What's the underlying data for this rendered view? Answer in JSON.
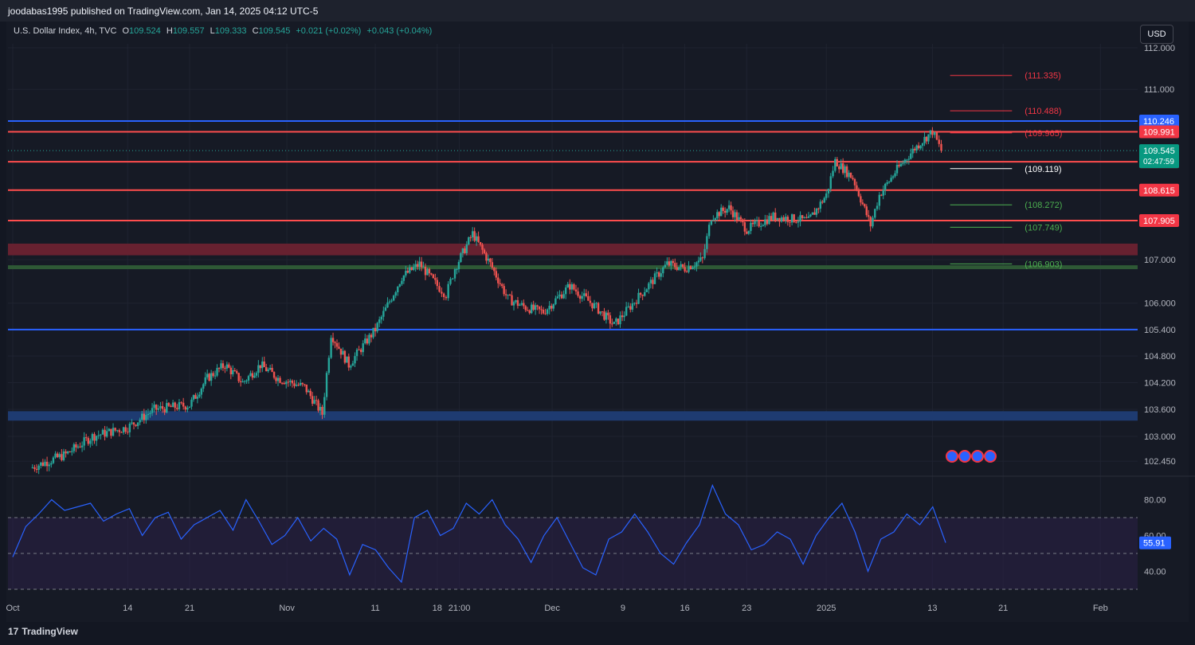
{
  "header": {
    "published_by": "joodabas1995 published on TradingView.com, Jan 14, 2025 04:12 UTC-5"
  },
  "legend": {
    "symbol": "U.S. Dollar Index, 4h, TVC",
    "open_label": "O",
    "open": "109.524",
    "high_label": "H",
    "high": "109.557",
    "low_label": "L",
    "low": "109.333",
    "close_label": "C",
    "close": "109.545",
    "change": "+0.021 (+0.02%)",
    "change2": "+0.043 (+0.04%)"
  },
  "currency_button": "USD",
  "footer": {
    "logo_text": "TradingView",
    "logo_mark": "17"
  },
  "colors": {
    "background": "#161a25",
    "up": "#26a69a",
    "down": "#ef5350",
    "rsi_line": "#2962ff",
    "blue_level": "#2962ff",
    "red_level": "#ff5252",
    "green_zone": "#2e5e3a",
    "red_zone": "#7a2430",
    "blue_zone": "#1e3a6e"
  },
  "chart_data": {
    "type": "candlestick",
    "symbol": "U.S. Dollar Index",
    "timeframe": "4h",
    "y_axis": {
      "ylim": [
        102.2,
        112.3
      ],
      "ticks": [
        "112.000",
        "111.000",
        "107.000",
        "106.000",
        "105.400",
        "104.800",
        "104.200",
        "103.600",
        "103.000",
        "102.450"
      ]
    },
    "x_axis": {
      "ticks": [
        "Oct",
        "14",
        "21",
        "Nov",
        "11",
        "18",
        "21:00",
        "Dec",
        "9",
        "16",
        "23",
        "2025",
        "13",
        "21",
        "Feb"
      ]
    },
    "price_path": [
      {
        "date": "Oct 3",
        "price": 102.3
      },
      {
        "date": "Oct 7",
        "price": 102.6
      },
      {
        "date": "Oct 10",
        "price": 103.0
      },
      {
        "date": "Oct 14",
        "price": 103.2
      },
      {
        "date": "Oct 17",
        "price": 103.6
      },
      {
        "date": "Oct 21",
        "price": 103.7
      },
      {
        "date": "Oct 23",
        "price": 104.3
      },
      {
        "date": "Oct 25",
        "price": 104.6
      },
      {
        "date": "Oct 27",
        "price": 104.2
      },
      {
        "date": "Oct 29",
        "price": 104.6
      },
      {
        "date": "Oct 31",
        "price": 104.3
      },
      {
        "date": "Nov 3",
        "price": 104.1
      },
      {
        "date": "Nov 5",
        "price": 103.5
      },
      {
        "date": "Nov 6",
        "price": 105.3
      },
      {
        "date": "Nov 8",
        "price": 104.6
      },
      {
        "date": "Nov 11",
        "price": 105.4
      },
      {
        "date": "Nov 14",
        "price": 106.6
      },
      {
        "date": "Nov 16",
        "price": 106.9
      },
      {
        "date": "Nov 18",
        "price": 106.4
      },
      {
        "date": "Nov 19",
        "price": 106.2
      },
      {
        "date": "Nov 20",
        "price": 106.8
      },
      {
        "date": "Nov 22",
        "price": 107.6
      },
      {
        "date": "Nov 24",
        "price": 106.9
      },
      {
        "date": "Nov 26",
        "price": 106.1
      },
      {
        "date": "Nov 28",
        "price": 105.9
      },
      {
        "date": "Nov 30",
        "price": 105.8
      },
      {
        "date": "Dec 3",
        "price": 106.4
      },
      {
        "date": "Dec 6",
        "price": 105.9
      },
      {
        "date": "Dec 8",
        "price": 105.5
      },
      {
        "date": "Dec 11",
        "price": 106.2
      },
      {
        "date": "Dec 14",
        "price": 106.9
      },
      {
        "date": "Dec 16",
        "price": 106.8
      },
      {
        "date": "Dec 18",
        "price": 107.0
      },
      {
        "date": "Dec 19",
        "price": 108.0
      },
      {
        "date": "Dec 21",
        "price": 108.2
      },
      {
        "date": "Dec 23",
        "price": 107.7
      },
      {
        "date": "Dec 26",
        "price": 108.0
      },
      {
        "date": "Dec 30",
        "price": 107.9
      },
      {
        "date": "Jan 1",
        "price": 108.5
      },
      {
        "date": "Jan 2",
        "price": 109.3
      },
      {
        "date": "Jan 4",
        "price": 108.9
      },
      {
        "date": "Jan 6",
        "price": 107.8
      },
      {
        "date": "Jan 7",
        "price": 108.5
      },
      {
        "date": "Jan 9",
        "price": 109.1
      },
      {
        "date": "Jan 11",
        "price": 109.6
      },
      {
        "date": "Jan 13",
        "price": 110.0
      },
      {
        "date": "Jan 14",
        "price": 109.545
      }
    ],
    "horizontal_levels": [
      {
        "price": 110.246,
        "label": "110.246",
        "color": "blue"
      },
      {
        "price": 109.991,
        "label": "109.991",
        "color": "red"
      },
      {
        "price": 109.281,
        "label": "109.281",
        "color": "red"
      },
      {
        "price": 108.615,
        "label": "108.615",
        "color": "red"
      },
      {
        "price": 107.905,
        "label": "107.905",
        "color": "red"
      },
      {
        "price": 105.4,
        "label": "",
        "color": "blue"
      }
    ],
    "zones": [
      {
        "from": 107.1,
        "to": 107.37,
        "color": "red"
      },
      {
        "from": 106.78,
        "to": 106.87,
        "color": "green"
      },
      {
        "from": 103.35,
        "to": 103.56,
        "color": "blue"
      }
    ],
    "fib_targets": [
      {
        "price": 111.335,
        "label": "(111.335)",
        "color": "red"
      },
      {
        "price": 110.488,
        "label": "(110.488)",
        "color": "red"
      },
      {
        "price": 109.965,
        "label": "(109.965)",
        "color": "red"
      },
      {
        "price": 109.119,
        "label": "(109.119)",
        "color": "white"
      },
      {
        "price": 108.272,
        "label": "(108.272)",
        "color": "green"
      },
      {
        "price": 107.749,
        "label": "(107.749)",
        "color": "green"
      },
      {
        "price": 106.903,
        "label": "(106.903)",
        "color": "green"
      }
    ],
    "last_price": {
      "value": "109.545",
      "countdown": "02:47:59"
    },
    "rsi": {
      "ticks": [
        "80.00",
        "60.00",
        "40.00"
      ],
      "ylim": [
        30,
        90
      ],
      "band": [
        30,
        70
      ],
      "midline": 50,
      "last": "55.91",
      "series": [
        48,
        65,
        72,
        80,
        74,
        76,
        78,
        68,
        72,
        75,
        60,
        70,
        73,
        58,
        66,
        70,
        74,
        63,
        80,
        68,
        55,
        60,
        70,
        57,
        64,
        58,
        38,
        55,
        52,
        42,
        34,
        70,
        74,
        60,
        64,
        78,
        72,
        80,
        66,
        58,
        45,
        60,
        70,
        56,
        42,
        38,
        58,
        62,
        72,
        62,
        50,
        44,
        56,
        66,
        88,
        72,
        66,
        52,
        55,
        62,
        58,
        44,
        60,
        70,
        78,
        62,
        40,
        58,
        62,
        72,
        66,
        76,
        56
      ]
    }
  }
}
